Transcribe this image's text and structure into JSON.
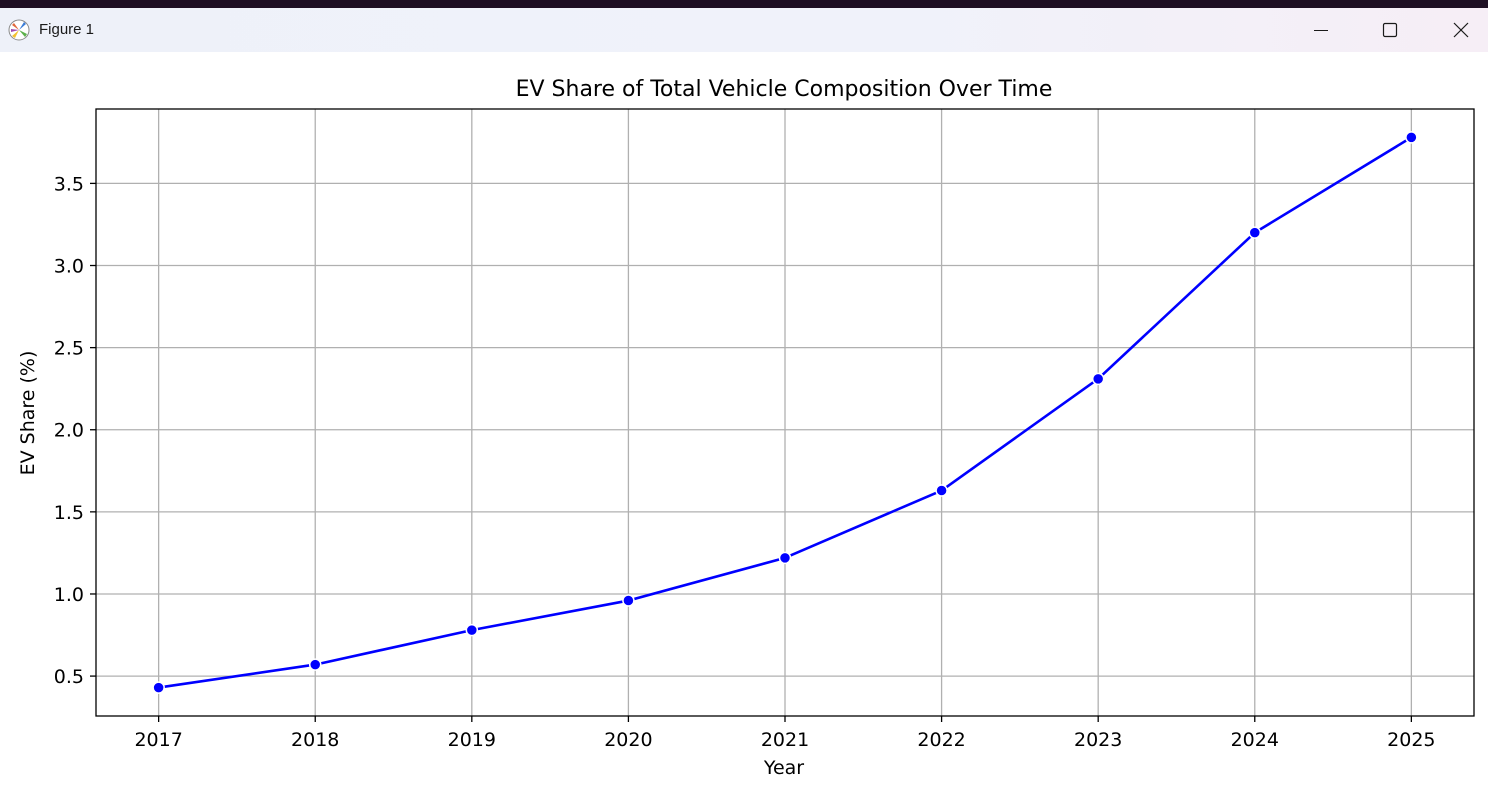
{
  "window": {
    "title": "Figure 1",
    "icons": {
      "app": "matplotlib-logo-icon",
      "minimize": "minimize-icon",
      "maximize": "maximize-icon",
      "close": "close-icon"
    }
  },
  "chart_data": {
    "type": "line",
    "title": "EV Share of Total Vehicle Composition Over Time",
    "xlabel": "Year",
    "ylabel": "EV Share (%)",
    "x": [
      2017,
      2018,
      2019,
      2020,
      2021,
      2022,
      2023,
      2024,
      2025
    ],
    "series": [
      {
        "values": [
          0.43,
          0.57,
          0.78,
          0.96,
          1.22,
          1.63,
          2.31,
          3.2,
          3.78
        ],
        "color": "#0000ff",
        "marker": "circle"
      }
    ],
    "xticks": [
      "2017",
      "2018",
      "2019",
      "2020",
      "2021",
      "2022",
      "2023",
      "2024",
      "2025"
    ],
    "yticks": [
      "0.5",
      "1.0",
      "1.5",
      "2.0",
      "2.5",
      "3.0",
      "3.5"
    ],
    "ytick_values": [
      0.5,
      1.0,
      1.5,
      2.0,
      2.5,
      3.0,
      3.5
    ],
    "xlim": [
      2016.6,
      2025.4
    ],
    "ylim": [
      0.257,
      3.953
    ],
    "grid": true,
    "legend": "none"
  }
}
